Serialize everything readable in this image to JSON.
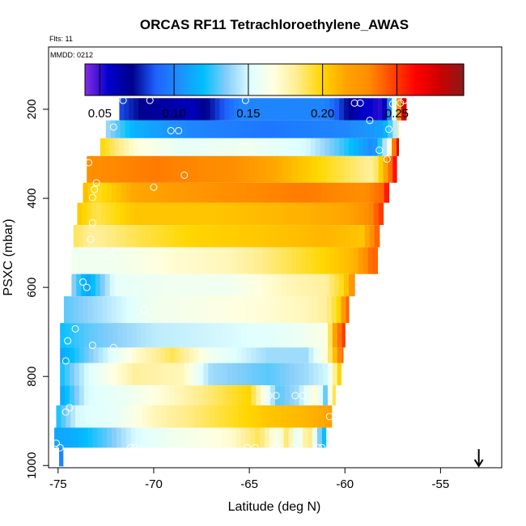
{
  "chart_data": {
    "type": "heatmap",
    "title": "ORCAS RF11 Tetrachloroethylene_AWAS",
    "flights_label": "Flts: 11",
    "date_label": "MMDD: 0212",
    "xlabel": "Latitude (deg N)",
    "ylabel": "PSXC (mbar)",
    "xlim": [
      -75.5,
      -51.8
    ],
    "ylim": [
      1005,
      60
    ],
    "x_ticks": [
      -75,
      -70,
      -65,
      -60,
      -55
    ],
    "x_tick_labels": [
      "-75",
      "-70",
      "-65",
      "-60",
      "-55"
    ],
    "y_ticks": [
      200,
      400,
      600,
      800,
      1000
    ],
    "y_tick_labels": [
      "200",
      "400",
      "600",
      "800",
      "1000"
    ],
    "colorbar": {
      "min": 0.04,
      "max": 0.295,
      "ticks": [
        0.05,
        0.1,
        0.15,
        0.2,
        0.25
      ],
      "tick_labels": [
        "0.05",
        "0.10",
        "0.15",
        "0.20",
        "0.25"
      ],
      "colors": [
        "#8a2be2",
        "#0000cd",
        "#00008b",
        "#1e62ff",
        "#1e90ff",
        "#00bfff",
        "#87cefa",
        "#e0ffff",
        "#ffffe0",
        "#ffec8b",
        "#ffd700",
        "#ffa500",
        "#ff8c00",
        "#ff4500",
        "#ff0000",
        "#cd0000",
        "#8b1a1a"
      ]
    },
    "arrow_marker_lat": -53,
    "bands": [
      {
        "p_top": 175,
        "p_bot": 225,
        "lat_start": -71.8,
        "lat_end": -56.8,
        "stops": [
          [
            -71.8,
            0.085
          ],
          [
            -70.5,
            0.07
          ],
          [
            -68,
            0.06
          ],
          [
            -65.5,
            0.1
          ],
          [
            -61,
            0.1
          ],
          [
            -59.3,
            0.06
          ],
          [
            -58,
            0.05
          ],
          [
            -57.5,
            0.13
          ],
          [
            -57.1,
            0.25
          ],
          [
            -56.9,
            0.28
          ]
        ]
      },
      {
        "p_top": 225,
        "p_bot": 265,
        "lat_start": -72.5,
        "lat_end": -57.2,
        "stops": [
          [
            -72.5,
            0.14
          ],
          [
            -71,
            0.115
          ],
          [
            -68,
            0.1
          ],
          [
            -64,
            0.095
          ],
          [
            -60,
            0.1
          ],
          [
            -58,
            0.11
          ],
          [
            -57.4,
            0.14
          ],
          [
            -57.2,
            0.18
          ]
        ]
      },
      {
        "p_top": 265,
        "p_bot": 305,
        "lat_start": -72.8,
        "lat_end": -57.2,
        "stops": [
          [
            -72.8,
            0.2
          ],
          [
            -71,
            0.17
          ],
          [
            -68.5,
            0.155
          ],
          [
            -65,
            0.16
          ],
          [
            -62,
            0.15
          ],
          [
            -60,
            0.125
          ],
          [
            -58.5,
            0.1
          ],
          [
            -57.7,
            0.16
          ],
          [
            -57.3,
            0.27
          ]
        ]
      },
      {
        "p_top": 305,
        "p_bot": 365,
        "lat_start": -73.5,
        "lat_end": -57.3,
        "stops": [
          [
            -73.5,
            0.23
          ],
          [
            -70,
            0.235
          ],
          [
            -66,
            0.23
          ],
          [
            -63,
            0.21
          ],
          [
            -60,
            0.19
          ],
          [
            -58.5,
            0.18
          ],
          [
            -57.8,
            0.22
          ],
          [
            -57.4,
            0.26
          ]
        ]
      },
      {
        "p_top": 365,
        "p_bot": 410,
        "lat_start": -73.7,
        "lat_end": -57.7,
        "stops": [
          [
            -73.7,
            0.21
          ],
          [
            -73,
            0.195
          ],
          [
            -71,
            0.215
          ],
          [
            -66,
            0.23
          ],
          [
            -62,
            0.235
          ],
          [
            -59,
            0.23
          ],
          [
            -58,
            0.24
          ],
          [
            -57.7,
            0.27
          ]
        ]
      },
      {
        "p_top": 410,
        "p_bot": 460,
        "lat_start": -74.0,
        "lat_end": -58.0,
        "stops": [
          [
            -74,
            0.205
          ],
          [
            -73,
            0.19
          ],
          [
            -71,
            0.205
          ],
          [
            -67,
            0.205
          ],
          [
            -63,
            0.21
          ],
          [
            -60,
            0.215
          ],
          [
            -58.7,
            0.23
          ],
          [
            -58.1,
            0.25
          ]
        ]
      },
      {
        "p_top": 460,
        "p_bot": 510,
        "lat_start": -74.2,
        "lat_end": -58.2,
        "stops": [
          [
            -74.2,
            0.19
          ],
          [
            -73.2,
            0.18
          ],
          [
            -71,
            0.19
          ],
          [
            -68,
            0.2
          ],
          [
            -64,
            0.205
          ],
          [
            -61,
            0.21
          ],
          [
            -59,
            0.205
          ],
          [
            -58.4,
            0.24
          ]
        ]
      },
      {
        "p_top": 510,
        "p_bot": 570,
        "lat_start": -74.3,
        "lat_end": -58.3,
        "stops": [
          [
            -74.3,
            0.16
          ],
          [
            -72,
            0.16
          ],
          [
            -69,
            0.17
          ],
          [
            -66,
            0.175
          ],
          [
            -63,
            0.19
          ],
          [
            -61,
            0.2
          ],
          [
            -59.5,
            0.21
          ],
          [
            -58.6,
            0.24
          ]
        ]
      },
      {
        "p_top": 570,
        "p_bot": 620,
        "lat_start": -74.3,
        "lat_end": -59.5,
        "stops": [
          [
            -74.3,
            0.14
          ],
          [
            -73.5,
            0.11
          ],
          [
            -72,
            0.155
          ],
          [
            -69,
            0.16
          ],
          [
            -66,
            0.16
          ],
          [
            -63,
            0.175
          ],
          [
            -61,
            0.18
          ],
          [
            -60,
            0.2
          ],
          [
            -59.6,
            0.23
          ]
        ]
      },
      {
        "p_top": 620,
        "p_bot": 680,
        "lat_start": -74.7,
        "lat_end": -59.8,
        "stops": [
          [
            -74.7,
            0.13
          ],
          [
            -73,
            0.14
          ],
          [
            -70,
            0.16
          ],
          [
            -67,
            0.165
          ],
          [
            -64,
            0.17
          ],
          [
            -62,
            0.175
          ],
          [
            -61,
            0.18
          ],
          [
            -60.3,
            0.2
          ],
          [
            -59.9,
            0.24
          ]
        ]
      },
      {
        "p_top": 680,
        "p_bot": 735,
        "lat_start": -74.9,
        "lat_end": -60.0,
        "stops": [
          [
            -74.9,
            0.12
          ],
          [
            -73.5,
            0.13
          ],
          [
            -70,
            0.145
          ],
          [
            -66,
            0.15
          ],
          [
            -63,
            0.155
          ],
          [
            -61,
            0.165
          ],
          [
            -60.5,
            0.22
          ],
          [
            -60.1,
            0.25
          ]
        ]
      },
      {
        "p_top": 735,
        "p_bot": 770,
        "lat_start": -74.9,
        "lat_end": -60.1,
        "stops": [
          [
            -74.9,
            0.11
          ],
          [
            -73,
            0.14
          ],
          [
            -71,
            0.17
          ],
          [
            -69,
            0.19
          ],
          [
            -67,
            0.16
          ],
          [
            -64,
            0.14
          ],
          [
            -62,
            0.14
          ],
          [
            -61,
            0.17
          ],
          [
            -60.5,
            0.21
          ],
          [
            -60.2,
            0.24
          ]
        ]
      },
      {
        "p_top": 770,
        "p_bot": 820,
        "lat_start": -74.9,
        "lat_end": -60.2,
        "stops": [
          [
            -74.9,
            0.12
          ],
          [
            -73.5,
            0.15
          ],
          [
            -71,
            0.18
          ],
          [
            -68.5,
            0.175
          ],
          [
            -67,
            0.14
          ],
          [
            -64,
            0.13
          ],
          [
            -62,
            0.14
          ],
          [
            -60.9,
            0.15
          ],
          [
            -60.3,
            0.2
          ]
        ]
      },
      {
        "p_top": 820,
        "p_bot": 865,
        "lat_start": -74.9,
        "lat_end": -60.5,
        "stops": [
          [
            -74.9,
            0.11
          ],
          [
            -73.5,
            0.15
          ],
          [
            -71,
            0.16
          ],
          [
            -68,
            0.18
          ],
          [
            -65,
            0.2
          ],
          [
            -63.5,
            0.13
          ],
          [
            -62.5,
            0.14
          ],
          [
            -61.5,
            0.17
          ],
          [
            -61,
            0.13
          ],
          [
            -60.6,
            0.19
          ]
        ]
      },
      {
        "p_top": 865,
        "p_bot": 915,
        "lat_start": -75.1,
        "lat_end": -60.7,
        "stops": [
          [
            -75.1,
            0.12
          ],
          [
            -74,
            0.15
          ],
          [
            -72,
            0.155
          ],
          [
            -70,
            0.175
          ],
          [
            -67,
            0.19
          ],
          [
            -64,
            0.205
          ],
          [
            -62,
            0.21
          ],
          [
            -61,
            0.215
          ],
          [
            -60.8,
            0.22
          ]
        ]
      },
      {
        "p_top": 915,
        "p_bot": 960,
        "lat_start": -75.2,
        "lat_end": -61.0,
        "stops": [
          [
            -75.2,
            0.11
          ],
          [
            -74,
            0.115
          ],
          [
            -72.5,
            0.13
          ],
          [
            -71,
            0.15
          ],
          [
            -69,
            0.16
          ],
          [
            -66,
            0.17
          ],
          [
            -64.5,
            0.19
          ],
          [
            -63.5,
            0.16
          ],
          [
            -63,
            0.19
          ],
          [
            -62.5,
            0.15
          ],
          [
            -61.9,
            0.19
          ],
          [
            -61.4,
            0.14
          ],
          [
            -61.1,
            0.12
          ]
        ]
      },
      {
        "p_top": 960,
        "p_bot": 1002,
        "lat_start": -74.95,
        "lat_end": -74.75,
        "stops": [
          [
            -74.95,
            0.1
          ],
          [
            -74.75,
            0.1
          ]
        ]
      }
    ],
    "sample_points": [
      [
        -71.6,
        180
      ],
      [
        -70.2,
        180
      ],
      [
        -65.2,
        180
      ],
      [
        -59.5,
        186
      ],
      [
        -59.2,
        186
      ],
      [
        -57.5,
        188
      ],
      [
        -57.1,
        186
      ],
      [
        -56.9,
        180
      ],
      [
        -72.1,
        240
      ],
      [
        -69.1,
        248
      ],
      [
        -68.7,
        248
      ],
      [
        -58.7,
        225
      ],
      [
        -57.7,
        245
      ],
      [
        -58.2,
        292
      ],
      [
        -57.8,
        312
      ],
      [
        -73.4,
        320
      ],
      [
        -68.4,
        348
      ],
      [
        -73.0,
        365
      ],
      [
        -73.1,
        380
      ],
      [
        -70.0,
        375
      ],
      [
        -73.2,
        398
      ],
      [
        -73.2,
        455
      ],
      [
        -73.3,
        492
      ],
      [
        -72.3,
        528
      ],
      [
        -73.7,
        588
      ],
      [
        -73.5,
        600
      ],
      [
        -70.5,
        650
      ],
      [
        -74.1,
        693
      ],
      [
        -74.5,
        720
      ],
      [
        -73.2,
        730
      ],
      [
        -72.1,
        735
      ],
      [
        -74.6,
        765
      ],
      [
        -74.4,
        870
      ],
      [
        -74.6,
        880
      ],
      [
        -64.0,
        843
      ],
      [
        -63.6,
        843
      ],
      [
        -62.6,
        843
      ],
      [
        -62.2,
        843
      ],
      [
        -60.8,
        890
      ],
      [
        -75.1,
        950
      ],
      [
        -74.9,
        960
      ],
      [
        -71.2,
        960
      ],
      [
        -71.0,
        960
      ],
      [
        -65.1,
        960
      ],
      [
        -64.7,
        960
      ],
      [
        -63.6,
        960
      ],
      [
        -62.7,
        960
      ],
      [
        -61.4,
        960
      ],
      [
        -61.2,
        960
      ]
    ]
  }
}
